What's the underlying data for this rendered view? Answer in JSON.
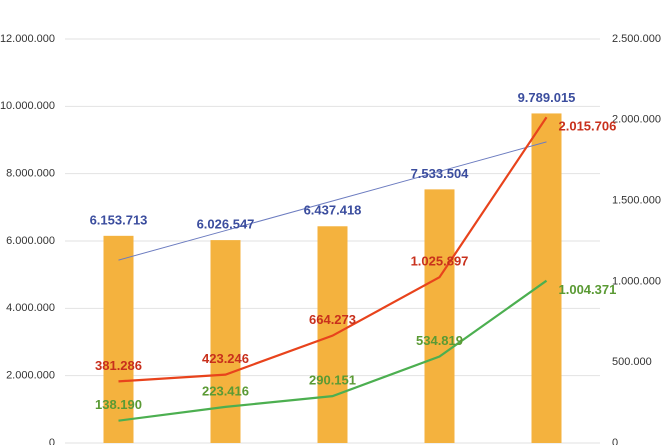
{
  "chart_data": {
    "type": "combo",
    "categories": [
      null,
      null,
      null,
      null,
      null
    ],
    "ylim": [
      0,
      12000000
    ],
    "yticks": [
      {
        "value": 0,
        "label": "0"
      },
      {
        "value": 2000000,
        "label": "2.000.000"
      },
      {
        "value": 4000000,
        "label": "4.000.000"
      },
      {
        "value": 6000000,
        "label": "6.000.000"
      },
      {
        "value": 8000000,
        "label": "8.000.000"
      },
      {
        "value": 10000000,
        "label": "10.000.000"
      },
      {
        "value": 12000000,
        "label": "12.000.000"
      }
    ],
    "y2lim": [
      0,
      2500000
    ],
    "y2ticks": [
      {
        "value": 0,
        "label": "0"
      },
      {
        "value": 500000,
        "label": "500.000"
      },
      {
        "value": 1000000,
        "label": "1.000.000"
      },
      {
        "value": 1500000,
        "label": "1.500.000"
      },
      {
        "value": 2000000,
        "label": "2.000.000"
      },
      {
        "value": 2500000,
        "label": "2.500.000"
      }
    ],
    "grid": true,
    "series": [
      {
        "type": "bar",
        "color": "#f4b23e",
        "label_color": "#3b4d9e",
        "values": [
          6153713,
          6026547,
          6437418,
          7533504,
          9789015
        ],
        "value_labels": [
          "6.153.713",
          "6.026.547",
          "6.437.418",
          "7.533.504",
          "9.789.015"
        ]
      },
      {
        "type": "line",
        "axis": "y2",
        "color": "#e8431c",
        "label_color": "#c8301c",
        "values": [
          381286,
          423246,
          664273,
          1025897,
          2015706
        ],
        "value_labels": [
          "381.286",
          "423.246",
          "664.273",
          "1.025.897",
          "2.015.706"
        ]
      },
      {
        "type": "line",
        "axis": "y2",
        "color": "#4caf50",
        "label_color": "#5a9a34",
        "values": [
          138190,
          223416,
          290151,
          534819,
          1004371
        ],
        "value_labels": [
          "138.190",
          "223.416",
          "290.151",
          "534.819",
          "1.004.371"
        ]
      }
    ],
    "trendline": {
      "color": "#6c7cc0",
      "values": [
        5432531,
        6310308,
        7188039,
        8065770,
        8943559
      ]
    }
  }
}
